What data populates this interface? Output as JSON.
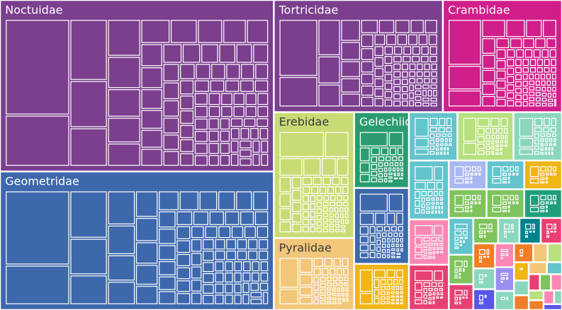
{
  "chart_data": {
    "type": "treemap",
    "title": "",
    "families": [
      {
        "name": "Noctuidae",
        "value": 26.0,
        "color": "#7b3f8e",
        "label_color": "#ffffff"
      },
      {
        "name": "Geometridae",
        "value": 21.0,
        "color": "#3d68ac",
        "label_color": "#ffffff"
      },
      {
        "name": "Tortricidae",
        "value": 10.5,
        "color": "#7b3f8e",
        "label_color": "#ffffff"
      },
      {
        "name": "Crambidae",
        "value": 7.4,
        "color": "#d01f8a",
        "label_color": "#ffffff"
      },
      {
        "name": "Erebidae",
        "value": 5.6,
        "color": "#c8dc75",
        "label_color": "#3a3a3a"
      },
      {
        "name": "Pyralidae",
        "value": 3.2,
        "color": "#f2c77a",
        "label_color": "#3a3a3a"
      },
      {
        "name": "Gelechiidae",
        "value": 2.3,
        "color": "#2a9c6f",
        "label_color": "#ffffff"
      },
      {
        "name": "",
        "value": 2.3,
        "color": "#3d68ac",
        "label_color": "#ffffff"
      },
      {
        "name": "",
        "value": 1.4,
        "color": "#f0b516",
        "label_color": "#ffffff"
      },
      {
        "name": "",
        "value": 1.3,
        "color": "#63c4cc",
        "label_color": "#ffffff"
      },
      {
        "name": "",
        "value": 1.5,
        "color": "#b7e07e",
        "label_color": "#ffffff"
      },
      {
        "name": "",
        "value": 1.3,
        "color": "#8ad7bd",
        "label_color": "#ffffff"
      },
      {
        "name": "",
        "value": 1.3,
        "color": "#63c4cc",
        "label_color": "#ffffff"
      },
      {
        "name": "",
        "value": 1.0,
        "color": "#fb87b4",
        "label_color": "#ffffff"
      },
      {
        "name": "",
        "value": 1.0,
        "color": "#e84072",
        "label_color": "#ffffff"
      },
      {
        "name": "",
        "value": 0.6,
        "color": "#a9b7f3",
        "label_color": "#ffffff"
      },
      {
        "name": "",
        "value": 0.6,
        "color": "#63c4cc",
        "label_color": "#ffffff"
      },
      {
        "name": "",
        "value": 0.6,
        "color": "#f0b516",
        "label_color": "#ffffff"
      },
      {
        "name": "",
        "value": 0.6,
        "color": "#7fc35c",
        "label_color": "#ffffff"
      },
      {
        "name": "",
        "value": 0.6,
        "color": "#7fc35c",
        "label_color": "#ffffff"
      },
      {
        "name": "",
        "value": 0.6,
        "color": "#1e9f7b",
        "label_color": "#ffffff"
      },
      {
        "name": "",
        "value": 0.5,
        "color": "#63c4cc",
        "label_color": "#ffffff"
      },
      {
        "name": "",
        "value": 0.4,
        "color": "#7fc35c",
        "label_color": "#ffffff"
      },
      {
        "name": "",
        "value": 0.35,
        "color": "#e84072",
        "label_color": "#ffffff"
      },
      {
        "name": "",
        "value": 0.35,
        "color": "#7fc35c",
        "label_color": "#ffffff"
      },
      {
        "name": "",
        "value": 0.3,
        "color": "#8ad7bd",
        "label_color": "#ffffff"
      },
      {
        "name": "",
        "value": 0.3,
        "color": "#00828a",
        "label_color": "#ffffff"
      },
      {
        "name": "",
        "value": 0.3,
        "color": "#e84072",
        "label_color": "#ffffff"
      },
      {
        "name": "",
        "value": 0.3,
        "color": "#f07d27",
        "label_color": "#ffffff"
      },
      {
        "name": "",
        "value": 0.25,
        "color": "#8ad7bd",
        "label_color": "#ffffff"
      },
      {
        "name": "",
        "value": 0.25,
        "color": "#5757e6",
        "label_color": "#ffffff"
      },
      {
        "name": "",
        "value": 0.25,
        "color": "#fb87b4",
        "label_color": "#ffffff"
      },
      {
        "name": "",
        "value": 0.25,
        "color": "#9b8ff0",
        "label_color": "#ffffff"
      },
      {
        "name": "",
        "value": 0.2,
        "color": "#8ad7bd",
        "label_color": "#ffffff"
      },
      {
        "name": "",
        "value": 0.2,
        "color": "#f07d27",
        "label_color": "#ffffff"
      },
      {
        "name": "",
        "value": 0.15,
        "color": "#f2c77a",
        "label_color": "#ffffff"
      },
      {
        "name": "",
        "value": 0.15,
        "color": "#b7e07e",
        "label_color": "#ffffff"
      },
      {
        "name": "",
        "value": 0.15,
        "color": "#f0b516",
        "label_color": "#ffffff"
      },
      {
        "name": "",
        "value": 0.12,
        "color": "#8ad7bd",
        "label_color": "#ffffff"
      },
      {
        "name": "",
        "value": 0.12,
        "color": "#f07d27",
        "label_color": "#ffffff"
      },
      {
        "name": "",
        "value": 0.12,
        "color": "#f2c77a",
        "label_color": "#ffffff"
      },
      {
        "name": "",
        "value": 0.1,
        "color": "#63c4cc",
        "label_color": "#ffffff"
      },
      {
        "name": "",
        "value": 0.1,
        "color": "#e84072",
        "label_color": "#ffffff"
      },
      {
        "name": "",
        "value": 0.1,
        "color": "#7fc35c",
        "label_color": "#ffffff"
      },
      {
        "name": "",
        "value": 0.1,
        "color": "#fb87b4",
        "label_color": "#ffffff"
      },
      {
        "name": "",
        "value": 0.08,
        "color": "#b7e07e",
        "label_color": "#ffffff"
      },
      {
        "name": "",
        "value": 0.08,
        "color": "#f07d27",
        "label_color": "#ffffff"
      },
      {
        "name": "",
        "value": 0.08,
        "color": "#fb87b4",
        "label_color": "#ffffff"
      },
      {
        "name": "",
        "value": 0.06,
        "color": "#8ad7bd",
        "label_color": "#ffffff"
      },
      {
        "name": "",
        "value": 0.06,
        "color": "#5757e6",
        "label_color": "#ffffff"
      }
    ]
  }
}
